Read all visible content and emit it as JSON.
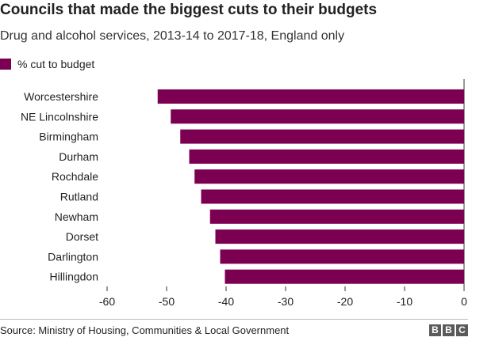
{
  "title": "Councils that made the biggest cuts to their budgets",
  "subtitle": "Drug and alcohol services, 2013-14 to 2017-18, England only",
  "source": "Source: Ministry of Housing, Communities & Local Government",
  "logo_text": "BBC",
  "colors": {
    "bar": "#7b0051",
    "axis": "#333333",
    "grid": "#dddddd"
  },
  "chart_data": {
    "type": "bar",
    "orientation": "horizontal",
    "categories": [
      "Worcestershire",
      "NE Lincolnshire",
      "Birmingham",
      "Durham",
      "Rochdale",
      "Rutland",
      "Newham",
      "Dorset",
      "Darlington",
      "Hillingdon"
    ],
    "series": [
      {
        "name": "% cut to budget",
        "values": [
          -51.5,
          -49.3,
          -47.7,
          -46.2,
          -45.3,
          -44.2,
          -42.7,
          -41.8,
          -41.0,
          -40.2
        ]
      }
    ],
    "xlim": [
      -60,
      0
    ],
    "xticks": [
      "-60",
      "-50",
      "-40",
      "-30",
      "-20",
      "-10",
      "0"
    ],
    "xtick_values": [
      -60,
      -50,
      -40,
      -30,
      -20,
      -10,
      0
    ],
    "grid": false,
    "legend": "top-left"
  }
}
